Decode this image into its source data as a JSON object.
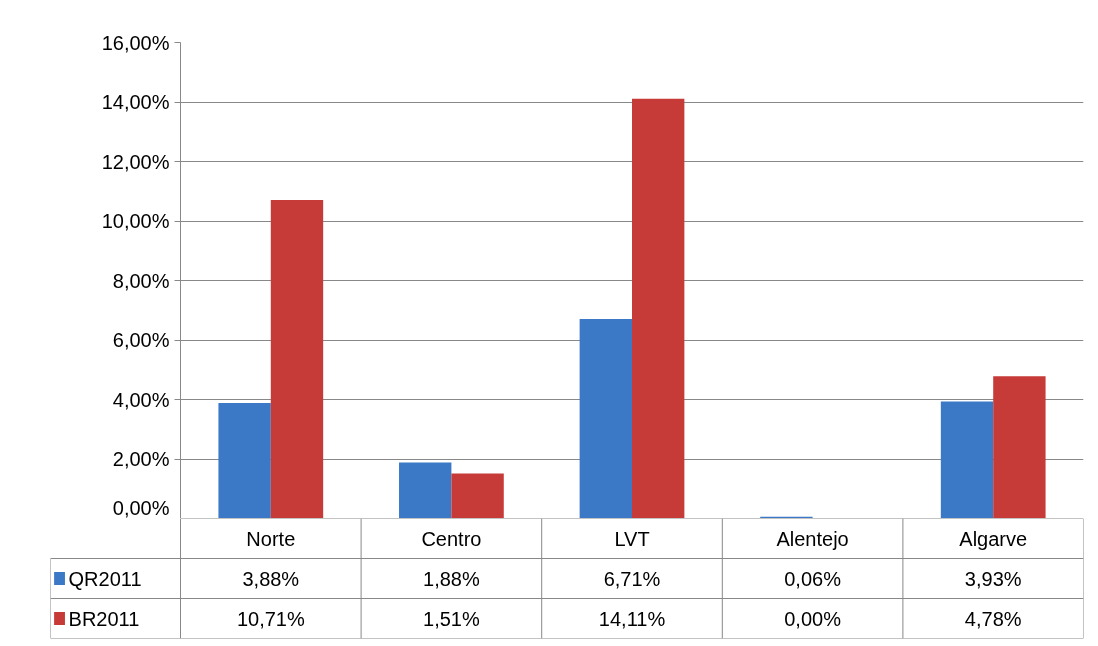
{
  "chart_data": {
    "type": "bar",
    "categories": [
      "Norte",
      "Centro",
      "LVT",
      "Alentejo",
      "Algarve"
    ],
    "series": [
      {
        "name": "QR2011",
        "color": "#3b78c6",
        "values": [
          3.88,
          1.88,
          6.71,
          0.06,
          3.93
        ],
        "value_labels": [
          "3,88%",
          "1,88%",
          "6,71%",
          "0,06%",
          "3,93%"
        ]
      },
      {
        "name": "BR2011",
        "color": "#c63a37",
        "values": [
          10.71,
          1.51,
          14.11,
          0.0,
          4.78
        ],
        "value_labels": [
          "10,71%",
          "1,51%",
          "14,11%",
          "0,00%",
          "4,78%"
        ]
      }
    ],
    "ylim": [
      0,
      16
    ],
    "yticks": [
      {
        "value": 0,
        "label": "0,00%"
      },
      {
        "value": 2,
        "label": "2,00%"
      },
      {
        "value": 4,
        "label": "4,00%"
      },
      {
        "value": 6,
        "label": "6,00%"
      },
      {
        "value": 8,
        "label": "8,00%"
      },
      {
        "value": 10,
        "label": "10,00%"
      },
      {
        "value": 12,
        "label": "12,00%"
      },
      {
        "value": 14,
        "label": "14,00%"
      },
      {
        "value": 16,
        "label": "16,00%"
      }
    ],
    "grid": "y",
    "legend": "bottom left"
  }
}
